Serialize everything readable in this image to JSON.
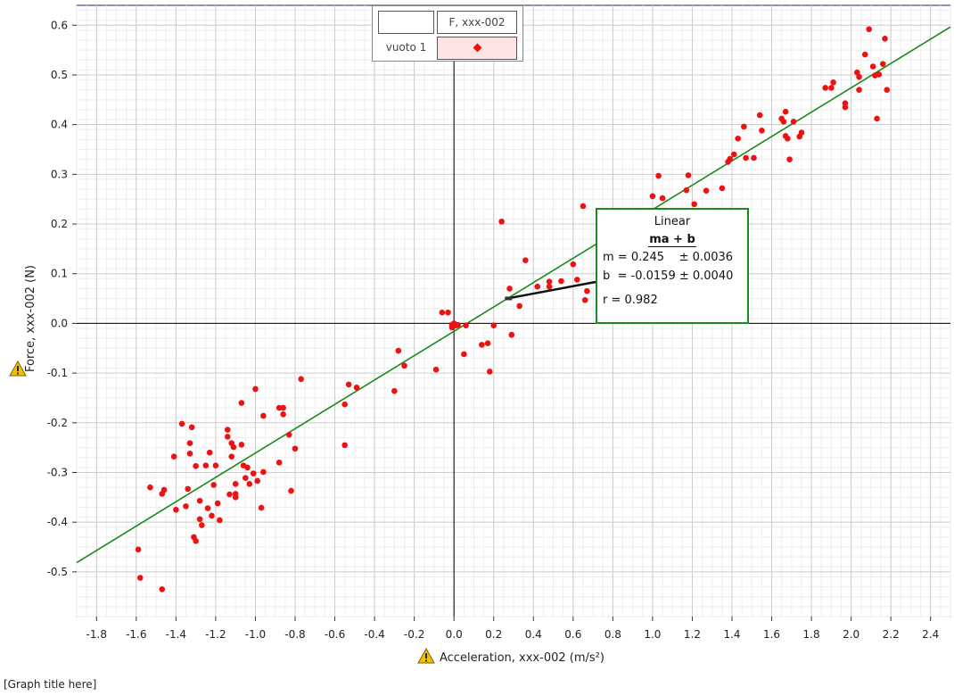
{
  "chart_data": {
    "type": "scatter",
    "xlabel": "Acceleration, xxx-002 (m/s²)",
    "ylabel": "Force, xxx-002 (N)",
    "title": "[Graph title here]",
    "xlim": [
      -1.9,
      2.5
    ],
    "ylim": [
      -0.59,
      0.64
    ],
    "xticks": [
      -1.8,
      -1.6,
      -1.4,
      -1.2,
      -1.0,
      -0.8,
      -0.6,
      -0.4,
      -0.2,
      0.0,
      0.2,
      0.4,
      0.6,
      0.8,
      1.0,
      1.2,
      1.4,
      1.6,
      1.8,
      2.0,
      2.2,
      2.4
    ],
    "yticks": [
      -0.5,
      -0.4,
      -0.3,
      -0.2,
      -0.1,
      0.0,
      0.1,
      0.2,
      0.3,
      0.4,
      0.5,
      0.6
    ],
    "xtick_labels": [
      "-1.8",
      "-1.6",
      "-1.4",
      "-1.2",
      "-1.0",
      "-0.8",
      "-0.6",
      "-0.4",
      "-0.2",
      "0.0",
      "0.2",
      "0.4",
      "0.6",
      "0.8",
      "1.0",
      "1.2",
      "1.4",
      "1.6",
      "1.8",
      "2.0",
      "2.2",
      "2.4"
    ],
    "ytick_labels": [
      "-0.5",
      "-0.4",
      "-0.3",
      "-0.2",
      "-0.1",
      "0.0",
      "0.1",
      "0.2",
      "0.3",
      "0.4",
      "0.5",
      "0.6"
    ],
    "grid": true,
    "legend": {
      "placement": "top-center",
      "header_label": "F, xxx-002",
      "row_label": "vuoto 1"
    },
    "colors": {
      "points": "#ee1111",
      "fit_line": "#1a8a1a",
      "axes": "#000000",
      "grid": "#dddddd",
      "frame": "#1a237e",
      "warning": "#f2c200"
    },
    "fit": {
      "name": "Linear",
      "equation": "ma + b",
      "m_label": "m = 0.245    ± 0.0036",
      "b_label": "b  = -0.0159 ± 0.0040",
      "r_label": "r = 0.982",
      "m": 0.245,
      "b": -0.0159
    },
    "series": [
      {
        "x": [
          -1.59,
          -1.58,
          -1.53,
          -1.47,
          -1.46,
          -1.47,
          -1.41,
          -1.4,
          -1.37,
          -1.35,
          -1.34,
          -1.33,
          -1.32,
          -1.33,
          -1.31,
          -1.3,
          -1.3,
          -1.28,
          -1.28,
          -1.27,
          -1.25,
          -1.24,
          -1.23,
          -1.22,
          -1.21,
          -1.2,
          -1.19,
          -1.18,
          -1.14,
          -1.14,
          -1.13,
          -1.12,
          -1.12,
          -1.11,
          -1.1,
          -1.1,
          -1.1,
          -1.07,
          -1.07,
          -1.06,
          -1.05,
          -1.04,
          -1.03,
          -1.01,
          -1.0,
          -0.99,
          -0.97,
          -0.96,
          -0.96,
          -0.88,
          -0.88,
          -0.86,
          -0.86,
          -0.83,
          -0.82,
          -0.8,
          -0.77,
          -0.55,
          -0.55,
          -0.53,
          -0.49,
          -0.3,
          -0.28,
          -0.25,
          -0.09,
          -0.06,
          -0.03,
          -0.01,
          -0.01,
          0.0,
          0.0,
          0.01,
          0.02,
          0.05,
          0.06,
          0.14,
          0.17,
          0.18,
          0.2,
          0.24,
          0.28,
          0.29,
          0.33,
          0.36,
          0.42,
          0.48,
          0.48,
          0.54,
          0.6,
          0.62,
          0.65,
          0.66,
          0.67,
          1.0,
          1.03,
          1.05,
          1.17,
          1.18,
          1.21,
          1.27,
          1.35,
          1.38,
          1.39,
          1.41,
          1.43,
          1.46,
          1.47,
          1.51,
          1.54,
          1.55,
          1.65,
          1.66,
          1.67,
          1.67,
          1.68,
          1.69,
          1.71,
          1.74,
          1.75,
          1.87,
          1.9,
          1.91,
          1.97,
          1.97,
          2.03,
          2.04,
          2.04,
          2.07,
          2.09,
          2.11,
          2.12,
          2.13,
          2.14,
          2.16,
          2.17,
          2.18
        ],
        "y": [
          -0.455,
          -0.512,
          -0.33,
          -0.535,
          -0.335,
          -0.343,
          -0.268,
          -0.375,
          -0.202,
          -0.368,
          -0.333,
          -0.262,
          -0.209,
          -0.241,
          -0.43,
          -0.438,
          -0.287,
          -0.394,
          -0.357,
          -0.406,
          -0.286,
          -0.372,
          -0.26,
          -0.387,
          -0.325,
          -0.286,
          -0.362,
          -0.396,
          -0.214,
          -0.228,
          -0.344,
          -0.241,
          -0.268,
          -0.249,
          -0.323,
          -0.343,
          -0.35,
          -0.16,
          -0.244,
          -0.286,
          -0.311,
          -0.29,
          -0.323,
          -0.302,
          -0.132,
          -0.317,
          -0.371,
          -0.186,
          -0.299,
          -0.17,
          -0.28,
          -0.183,
          -0.17,
          -0.224,
          -0.337,
          -0.252,
          -0.112,
          -0.163,
          -0.245,
          -0.123,
          -0.129,
          -0.136,
          -0.055,
          -0.085,
          -0.093,
          0.022,
          0.022,
          -0.003,
          -0.008,
          -0.005,
          0.0,
          -0.004,
          -0.003,
          -0.062,
          -0.004,
          -0.043,
          -0.04,
          -0.097,
          -0.004,
          0.205,
          0.07,
          -0.023,
          0.035,
          0.127,
          0.074,
          0.084,
          0.074,
          0.085,
          0.119,
          0.088,
          0.236,
          0.047,
          0.065,
          0.256,
          0.297,
          0.252,
          0.268,
          0.298,
          0.24,
          0.267,
          0.272,
          0.325,
          0.331,
          0.34,
          0.372,
          0.396,
          0.333,
          0.333,
          0.419,
          0.388,
          0.412,
          0.406,
          0.377,
          0.426,
          0.372,
          0.33,
          0.406,
          0.376,
          0.384,
          0.474,
          0.474,
          0.485,
          0.435,
          0.443,
          0.505,
          0.47,
          0.496,
          0.541,
          0.592,
          0.517,
          0.499,
          0.412,
          0.501,
          0.522,
          0.573,
          0.47
        ]
      }
    ]
  }
}
